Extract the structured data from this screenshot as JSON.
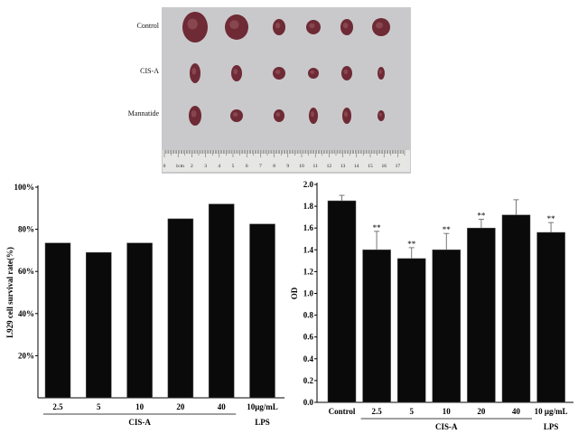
{
  "photo": {
    "row_labels": [
      "Control",
      "CIS-A",
      "Mannatide"
    ],
    "ruler_labels": [
      "0",
      "1cm",
      "2",
      "3",
      "4",
      "5",
      "6",
      "7",
      "8",
      "9",
      "10",
      "11",
      "12",
      "13",
      "14",
      "15",
      "16",
      "17"
    ],
    "background_color": "#c9c9cb",
    "tissue_color": "#6e2a35"
  },
  "chart_data": [
    {
      "type": "bar",
      "categories": [
        "2.5",
        "5",
        "10",
        "20",
        "40",
        "10μg/mL"
      ],
      "group_labels": [
        {
          "label": "CIS-A",
          "from": 0,
          "to": 4
        },
        {
          "label": "LPS",
          "from": 5,
          "to": 5
        }
      ],
      "values": [
        73.5,
        69,
        73.5,
        85,
        92,
        82.5
      ],
      "ylabel": "L929 cell survival rate(%)",
      "xlabel": "",
      "ylim": [
        0,
        100
      ],
      "yticks": [
        20,
        40,
        60,
        80,
        100
      ],
      "ytick_labels": [
        "20%",
        "40%",
        "60%",
        "80%",
        "100%"
      ],
      "bar_color": "#0a0a0a",
      "grid": false
    },
    {
      "type": "bar",
      "categories": [
        "Control",
        "2.5",
        "5",
        "10",
        "20",
        "40",
        "10 μg/mL"
      ],
      "group_labels": [
        {
          "label": "CIS-A",
          "from": 1,
          "to": 5
        },
        {
          "label": "LPS",
          "from": 6,
          "to": 6
        }
      ],
      "values": [
        1.85,
        1.4,
        1.32,
        1.4,
        1.6,
        1.72,
        1.56
      ],
      "error_upper": [
        0.05,
        0.17,
        0.1,
        0.15,
        0.08,
        0.14,
        0.09
      ],
      "annotations": [
        "",
        "**",
        "**",
        "**",
        "**",
        "",
        "**"
      ],
      "ylabel": "OD",
      "xlabel": "",
      "ylim": [
        0,
        2.0
      ],
      "yticks": [
        "0.0",
        "0.2",
        "0.4",
        "0.6",
        "0.8",
        "1.0",
        "1.2",
        "1.4",
        "1.6",
        "1.8",
        "2.0"
      ],
      "bar_color": "#0a0a0a",
      "grid": false
    }
  ]
}
